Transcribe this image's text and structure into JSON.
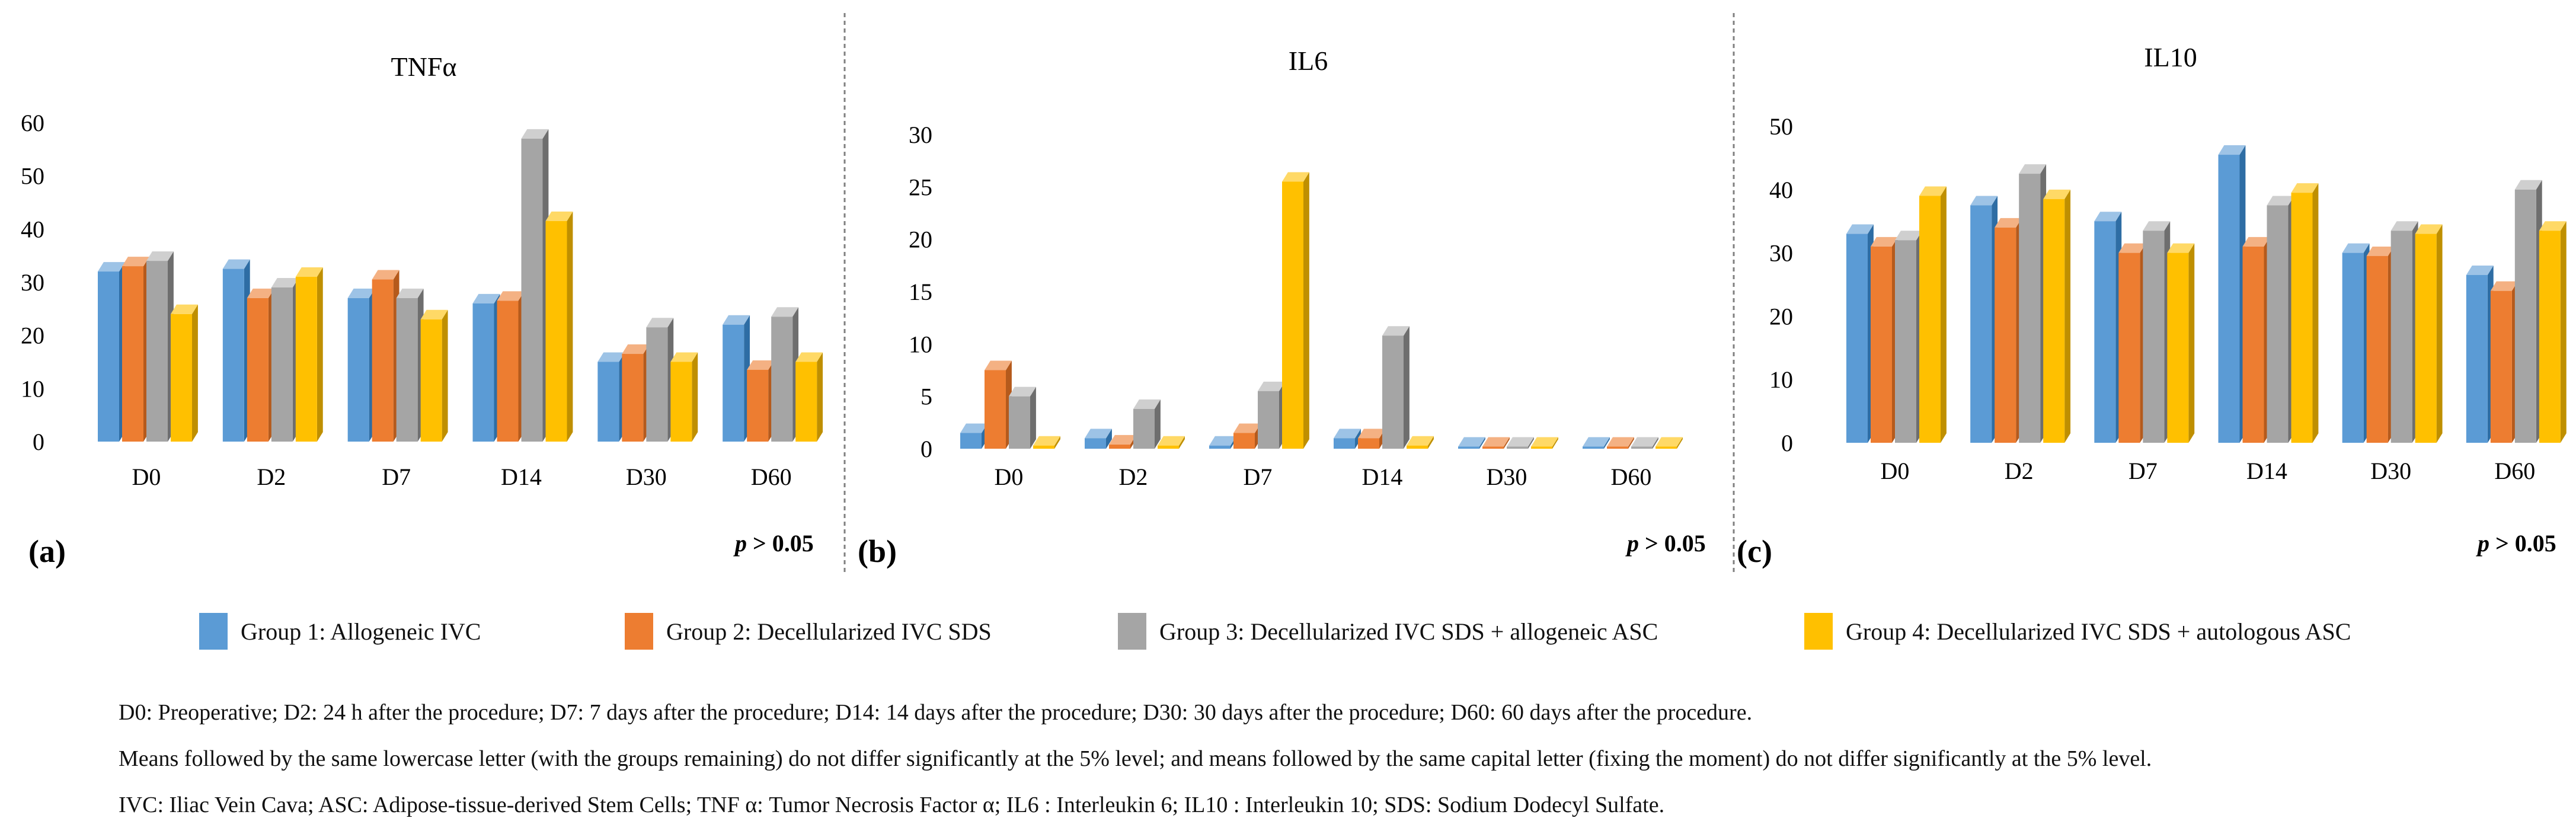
{
  "chart_data": [
    {
      "type": "bar",
      "title": "TNFα",
      "panel_label": "(a)",
      "p_value": {
        "prefix": "p",
        "rest": " > 0.05"
      },
      "categories": [
        "D0",
        "D2",
        "D7",
        "D14",
        "D30",
        "D60"
      ],
      "ylim": [
        0,
        60
      ],
      "yticks": [
        0,
        10,
        20,
        30,
        40,
        50,
        60
      ],
      "series": [
        {
          "name": "Group 1: Allogeneic IVC",
          "values": [
            32,
            32.5,
            27,
            26,
            15,
            22
          ]
        },
        {
          "name": "Group 2: Decellularized IVC SDS",
          "values": [
            33,
            27,
            30.5,
            26.5,
            16.5,
            13.5
          ]
        },
        {
          "name": "Group 3: Decellularized IVC SDS + allogeneic ASC",
          "values": [
            34,
            29,
            27,
            57,
            21.5,
            23.5
          ]
        },
        {
          "name": "Group 4: Decellularized IVC SDS + autologous ASC",
          "values": [
            24,
            31,
            23,
            41.5,
            15,
            15
          ]
        }
      ]
    },
    {
      "type": "bar",
      "title": "IL6",
      "panel_label": "(b)",
      "p_value": {
        "prefix": "p",
        "rest": " > 0.05"
      },
      "categories": [
        "D0",
        "D2",
        "D7",
        "D14",
        "D30",
        "D60"
      ],
      "ylim": [
        0,
        30
      ],
      "yticks": [
        0,
        5,
        10,
        15,
        20,
        25,
        30
      ],
      "series": [
        {
          "name": "Group 1: Allogeneic IVC",
          "values": [
            1.5,
            1,
            0.3,
            1,
            0.2,
            0.2
          ]
        },
        {
          "name": "Group 2: Decellularized IVC SDS",
          "values": [
            7.5,
            0.4,
            1.5,
            1,
            0.2,
            0.2
          ]
        },
        {
          "name": "Group 3: Decellularized IVC SDS + allogeneic ASC",
          "values": [
            5,
            3.8,
            5.5,
            10.8,
            0.2,
            0.2
          ]
        },
        {
          "name": "Group 4: Decellularized IVC SDS + autologous ASC",
          "values": [
            0.3,
            0.3,
            25.5,
            0.3,
            0.2,
            0.2
          ]
        }
      ]
    },
    {
      "type": "bar",
      "title": "IL10",
      "panel_label": "(c)",
      "p_value": {
        "prefix": "p",
        "rest": " > 0.05"
      },
      "categories": [
        "D0",
        "D2",
        "D7",
        "D14",
        "D30",
        "D60"
      ],
      "ylim": [
        0,
        50
      ],
      "yticks": [
        0,
        10,
        20,
        30,
        40,
        50
      ],
      "series": [
        {
          "name": "Group 1: Allogeneic IVC",
          "values": [
            33,
            37.5,
            35,
            45.5,
            30,
            26.5
          ]
        },
        {
          "name": "Group 2: Decellularized IVC SDS",
          "values": [
            31,
            34,
            30,
            31,
            29.5,
            24
          ]
        },
        {
          "name": "Group 3: Decellularized IVC SDS + allogeneic ASC",
          "values": [
            32,
            42.5,
            33.5,
            37.5,
            33.5,
            40
          ]
        },
        {
          "name": "Group 4: Decellularized IVC SDS + autologous ASC",
          "values": [
            39,
            38.5,
            30,
            39.5,
            33,
            33.5
          ]
        }
      ]
    }
  ],
  "colors": {
    "series": [
      "#5b9bd5",
      "#ed7d31",
      "#a5a5a5",
      "#ffc000"
    ],
    "sides": [
      "#2e6da4",
      "#b55a1c",
      "#6e6e6e",
      "#bf8f00"
    ],
    "tops": [
      "#9dc3e6",
      "#f4b183",
      "#cfcfcf",
      "#ffd966"
    ],
    "divider": "#808080"
  },
  "legend": [
    "Group 1: Allogeneic  IVC",
    "Group 2: Decellularized IVC SDS",
    "Group 3: Decellularized IVC SDS + allogeneic ASC",
    "Group 4: Decellularized IVC SDS + autologous ASC"
  ],
  "footnotes": [
    "D0: Preoperative; D2:  24 h after the procedure; D7:  7 days after the procedure; D14: 14 days after the procedure; D30: 30 days after the procedure; D60: 60 days after the procedure.",
    "Means followed by the same lowercase letter (with the groups remaining)  do not differ significantly at the 5% level; and means followed by the same capital letter (fixing  the moment)  do not differ significantly at the 5% level.",
    "IVC: Iliac Vein Cava; ASC: Adipose-tissue-derived Stem Cells; TNF α: Tumor Necrosis Factor α; IL6 : Interleukin 6; IL10 : Interleukin 10; SDS: Sodium Dodecyl Sulfate."
  ]
}
